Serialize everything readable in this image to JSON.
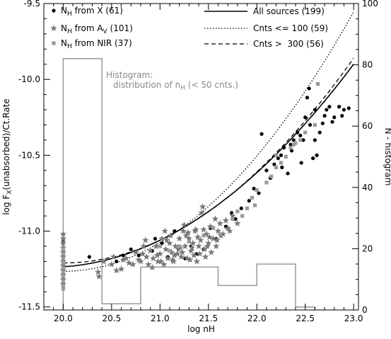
{
  "chart_data": {
    "type": "scatter",
    "xlabel": "log nH",
    "ylabel": "log F_X(unabsorbed)/Ct.Rate",
    "y2label": "N - histogram",
    "xlim": [
      19.8,
      23.05
    ],
    "ylim": [
      -11.52,
      -9.5
    ],
    "y2lim": [
      0,
      100
    ],
    "xticks": [
      "20.0",
      "20.5",
      "21.0",
      "21.5",
      "22.0",
      "22.5",
      "23.0"
    ],
    "yticks": [
      "-11.5",
      "-11.0",
      "-10.5",
      "-10.0",
      "-9.5"
    ],
    "y2ticks": [
      "0",
      "20",
      "40",
      "60",
      "80",
      "100"
    ],
    "legend_left": [
      {
        "marker": "circle",
        "color": "#000000",
        "text": "N",
        "sub": "H",
        "rest": " from X (61)"
      },
      {
        "marker": "star",
        "color": "#777777",
        "text": "N",
        "sub": "H",
        "rest": " from A",
        "sub2": "V",
        "rest2": " (101)"
      },
      {
        "marker": "square",
        "color": "#999999",
        "text": "N",
        "sub": "H",
        "rest": " from NIR (37)"
      }
    ],
    "legend_right": [
      {
        "style": "solid",
        "text": "All sources (199)"
      },
      {
        "style": "dotted",
        "text": "Cnts <= 100 (59)"
      },
      {
        "style": "dashed",
        "text": "Cnts >  300 (56)"
      }
    ],
    "histogram_note": {
      "line1": "Histogram:",
      "line2_pre": "distribution of n",
      "line2_sub": "H",
      "line2_post": " (< 50 cnts.)"
    },
    "curves": [
      {
        "name": "All sources (199)",
        "style": "solid",
        "coef": [
          -11.235,
          0.04,
          0.135
        ]
      },
      {
        "name": "Cnts <= 100 (59)",
        "style": "dotted",
        "coef": [
          -11.265,
          0.0,
          0.19
        ]
      },
      {
        "name": "Cnts >  300 (56)",
        "style": "dashed",
        "coef": [
          -11.21,
          0.0,
          0.15
        ]
      }
    ],
    "histogram": {
      "edges": [
        20.0,
        20.4,
        20.8,
        21.2,
        21.6,
        22.0,
        22.4,
        22.6
      ],
      "counts": [
        82,
        2,
        14,
        14,
        8,
        15,
        1
      ]
    },
    "series": [
      {
        "name": "N_H from X (61)",
        "marker": "circle",
        "color": "#000000",
        "points": [
          [
            20.0,
            -11.06
          ],
          [
            20.0,
            -11.15
          ],
          [
            20.27,
            -11.17
          ],
          [
            20.55,
            -11.2
          ],
          [
            20.62,
            -11.16
          ],
          [
            20.7,
            -11.12
          ],
          [
            20.78,
            -11.16
          ],
          [
            20.92,
            -11.13
          ],
          [
            20.95,
            -11.05
          ],
          [
            21.02,
            -11.08
          ],
          [
            21.08,
            -11.17
          ],
          [
            21.15,
            -11.0
          ],
          [
            21.2,
            -11.1
          ],
          [
            21.26,
            -11.18
          ],
          [
            21.32,
            -11.1
          ],
          [
            21.38,
            -11.15
          ],
          [
            21.45,
            -11.12
          ],
          [
            21.52,
            -10.98
          ],
          [
            21.58,
            -11.05
          ],
          [
            21.68,
            -10.97
          ],
          [
            21.74,
            -10.88
          ],
          [
            21.78,
            -10.92
          ],
          [
            21.84,
            -10.85
          ],
          [
            21.92,
            -10.8
          ],
          [
            21.97,
            -10.72
          ],
          [
            22.02,
            -10.75
          ],
          [
            22.05,
            -10.36
          ],
          [
            22.1,
            -10.6
          ],
          [
            22.14,
            -10.65
          ],
          [
            22.18,
            -10.56
          ],
          [
            22.22,
            -10.52
          ],
          [
            22.25,
            -10.5
          ],
          [
            22.28,
            -10.45
          ],
          [
            22.32,
            -10.62
          ],
          [
            22.36,
            -10.47
          ],
          [
            22.38,
            -10.4
          ],
          [
            22.42,
            -10.35
          ],
          [
            22.46,
            -10.55
          ],
          [
            22.48,
            -10.4
          ],
          [
            22.5,
            -10.25
          ],
          [
            22.52,
            -10.12
          ],
          [
            22.55,
            -10.3
          ],
          [
            22.58,
            -10.52
          ],
          [
            22.6,
            -10.4
          ],
          [
            22.62,
            -10.5
          ],
          [
            22.65,
            -10.35
          ],
          [
            22.68,
            -10.29
          ],
          [
            22.72,
            -10.2
          ],
          [
            22.75,
            -10.18
          ],
          [
            22.78,
            -10.28
          ],
          [
            22.8,
            -10.25
          ],
          [
            22.85,
            -10.18
          ],
          [
            22.88,
            -10.24
          ],
          [
            22.95,
            -10.19
          ],
          [
            22.45,
            -10.37
          ],
          [
            22.54,
            -10.06
          ],
          [
            22.6,
            -10.2
          ],
          [
            22.9,
            -10.2
          ],
          [
            22.7,
            -10.24
          ],
          [
            22.35,
            -10.43
          ],
          [
            22.26,
            -10.58
          ]
        ]
      },
      {
        "name": "N_H from A_V (101)",
        "marker": "star",
        "color": "#777777",
        "points": [
          [
            20.0,
            -11.02
          ],
          [
            20.0,
            -11.05
          ],
          [
            20.0,
            -11.08
          ],
          [
            20.0,
            -11.11
          ],
          [
            20.0,
            -11.14
          ],
          [
            20.0,
            -11.17
          ],
          [
            20.0,
            -11.2
          ],
          [
            20.0,
            -11.23
          ],
          [
            20.0,
            -11.26
          ],
          [
            20.0,
            -11.29
          ],
          [
            20.0,
            -11.32
          ],
          [
            20.0,
            -11.35
          ],
          [
            20.36,
            -11.27
          ],
          [
            20.37,
            -11.3
          ],
          [
            20.42,
            -11.2
          ],
          [
            20.5,
            -11.22
          ],
          [
            20.52,
            -11.17
          ],
          [
            20.6,
            -11.25
          ],
          [
            20.65,
            -11.18
          ],
          [
            20.72,
            -11.22
          ],
          [
            20.75,
            -11.14
          ],
          [
            20.8,
            -11.2
          ],
          [
            20.83,
            -11.1
          ],
          [
            20.86,
            -11.17
          ],
          [
            20.88,
            -11.22
          ],
          [
            20.9,
            -11.13
          ],
          [
            20.93,
            -11.18
          ],
          [
            20.96,
            -11.1
          ],
          [
            20.98,
            -11.2
          ],
          [
            21.0,
            -11.15
          ],
          [
            21.02,
            -11.05
          ],
          [
            21.04,
            -11.22
          ],
          [
            21.06,
            -11.12
          ],
          [
            21.08,
            -11.18
          ],
          [
            21.1,
            -11.08
          ],
          [
            21.12,
            -11.14
          ],
          [
            21.14,
            -11.2
          ],
          [
            21.16,
            -11.1
          ],
          [
            21.18,
            -11.15
          ],
          [
            21.2,
            -11.05
          ],
          [
            21.22,
            -11.17
          ],
          [
            21.24,
            -11.0
          ],
          [
            21.25,
            -10.96
          ],
          [
            21.26,
            -11.1
          ],
          [
            21.28,
            -11.18
          ],
          [
            21.3,
            -11.05
          ],
          [
            21.32,
            -11.13
          ],
          [
            21.34,
            -11.08
          ],
          [
            21.36,
            -11.0
          ],
          [
            21.38,
            -11.2
          ],
          [
            21.4,
            -11.1
          ],
          [
            21.42,
            -11.06
          ],
          [
            21.43,
            -10.88
          ],
          [
            21.44,
            -10.84
          ],
          [
            21.46,
            -11.12
          ],
          [
            21.48,
            -11.02
          ],
          [
            21.5,
            -11.08
          ],
          [
            21.52,
            -10.97
          ],
          [
            21.55,
            -11.05
          ],
          [
            21.58,
            -11.1
          ],
          [
            21.6,
            -11.0
          ],
          [
            21.62,
            -10.95
          ],
          [
            21.65,
            -11.02
          ],
          [
            21.68,
            -10.93
          ],
          [
            21.7,
            -10.98
          ],
          [
            21.75,
            -10.9
          ],
          [
            21.8,
            -10.95
          ],
          [
            20.85,
            -11.06
          ],
          [
            20.92,
            -11.24
          ],
          [
            21.05,
            -11.0
          ],
          [
            21.15,
            -11.16
          ],
          [
            21.27,
            -11.03
          ],
          [
            21.35,
            -11.16
          ],
          [
            21.45,
            -10.99
          ],
          [
            21.53,
            -11.14
          ],
          [
            21.57,
            -10.92
          ],
          [
            20.68,
            -11.21
          ],
          [
            20.78,
            -11.19
          ],
          [
            21.01,
            -11.2
          ],
          [
            21.11,
            -11.03
          ],
          [
            21.19,
            -11.12
          ],
          [
            21.31,
            -11.19
          ],
          [
            21.39,
            -11.04
          ],
          [
            21.47,
            -11.17
          ],
          [
            20.55,
            -11.26
          ],
          [
            20.62,
            -11.19
          ],
          [
            21.07,
            -11.06
          ],
          [
            21.21,
            -11.11
          ],
          [
            21.29,
            -11.01
          ],
          [
            21.37,
            -10.99
          ],
          [
            21.49,
            -11.1
          ],
          [
            21.63,
            -11.03
          ],
          [
            21.72,
            -11.0
          ],
          [
            20.82,
            -11.15
          ],
          [
            20.97,
            -11.16
          ],
          [
            21.13,
            -11.19
          ],
          [
            21.23,
            -11.14
          ],
          [
            21.33,
            -11.11
          ],
          [
            21.41,
            -11.15
          ],
          [
            21.51,
            -11.04
          ],
          [
            21.59,
            -11.06
          ]
        ]
      },
      {
        "name": "N_H from NIR (37)",
        "marker": "square",
        "color": "#999999",
        "points": [
          [
            20.0,
            -11.15
          ],
          [
            20.0,
            -11.18
          ],
          [
            20.0,
            -11.21
          ],
          [
            20.0,
            -11.24
          ],
          [
            20.0,
            -11.27
          ],
          [
            20.0,
            -11.3
          ],
          [
            20.0,
            -11.33
          ],
          [
            20.0,
            -11.12
          ],
          [
            20.0,
            -11.36
          ],
          [
            20.0,
            -11.38
          ],
          [
            21.0,
            -11.1
          ],
          [
            21.1,
            -11.13
          ],
          [
            21.2,
            -11.1
          ],
          [
            21.3,
            -11.07
          ],
          [
            21.45,
            -11.03
          ],
          [
            21.55,
            -10.98
          ],
          [
            21.62,
            -11.02
          ],
          [
            21.75,
            -10.92
          ],
          [
            21.85,
            -10.9
          ],
          [
            21.9,
            -10.85
          ],
          [
            21.98,
            -10.83
          ],
          [
            22.0,
            -10.73
          ],
          [
            22.1,
            -10.68
          ],
          [
            22.15,
            -10.64
          ],
          [
            22.2,
            -10.58
          ],
          [
            22.25,
            -10.55
          ],
          [
            22.3,
            -10.51
          ],
          [
            22.35,
            -10.45
          ],
          [
            22.4,
            -10.42
          ],
          [
            22.5,
            -10.35
          ],
          [
            22.6,
            -10.3
          ],
          [
            22.63,
            -10.03
          ],
          [
            22.45,
            -10.4
          ],
          [
            22.2,
            -10.5
          ],
          [
            21.8,
            -10.87
          ],
          [
            21.95,
            -10.78
          ],
          [
            22.38,
            -10.43
          ]
        ]
      }
    ]
  }
}
